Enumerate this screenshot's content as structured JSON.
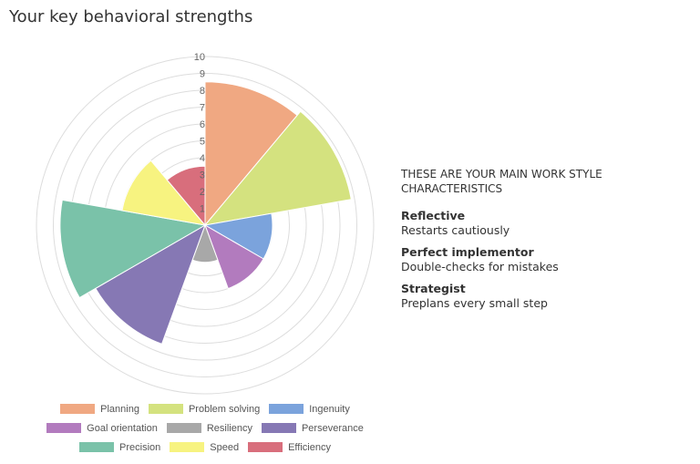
{
  "page": {
    "title": "Your key behavioral strengths"
  },
  "chart_data": {
    "type": "polar-area",
    "title": "",
    "r_ticks": [
      "1",
      "2",
      "3",
      "4",
      "5",
      "6",
      "7",
      "8",
      "9",
      "10"
    ],
    "r_max": 10,
    "categories": [
      "Planning",
      "Problem solving",
      "Ingenuity",
      "Goal orientation",
      "Resiliency",
      "Perseverance",
      "Precision",
      "Speed",
      "Efficiency"
    ],
    "values": [
      8.5,
      8.8,
      4.0,
      4.0,
      2.2,
      7.5,
      8.6,
      5.0,
      3.5
    ],
    "colors": [
      "#f0a882",
      "#d4e27f",
      "#7ba3dc",
      "#b27bbe",
      "#a8a8a8",
      "#8678b4",
      "#7ac2a9",
      "#f7f380",
      "#d86e7c"
    ],
    "legend_placement": "bottom",
    "grid": true
  },
  "legend": {
    "rows": [
      [
        {
          "label": "Planning",
          "color": "#f0a882"
        },
        {
          "label": "Problem solving",
          "color": "#d4e27f"
        },
        {
          "label": "Ingenuity",
          "color": "#7ba3dc"
        }
      ],
      [
        {
          "label": "Goal orientation",
          "color": "#b27bbe"
        },
        {
          "label": "Resiliency",
          "color": "#a8a8a8"
        },
        {
          "label": "Perseverance",
          "color": "#8678b4"
        }
      ],
      [
        {
          "label": "Precision",
          "color": "#7ac2a9"
        },
        {
          "label": "Speed",
          "color": "#f7f380"
        },
        {
          "label": "Efficiency",
          "color": "#d86e7c"
        }
      ]
    ]
  },
  "side": {
    "heading": "THESE ARE YOUR MAIN WORK STYLE CHARACTERISTICS",
    "traits": [
      {
        "name": "Reflective",
        "desc": "Restarts cautiously"
      },
      {
        "name": "Perfect implementor",
        "desc": "Double-checks for mistakes"
      },
      {
        "name": "Strategist",
        "desc": "Preplans every small step"
      }
    ]
  }
}
